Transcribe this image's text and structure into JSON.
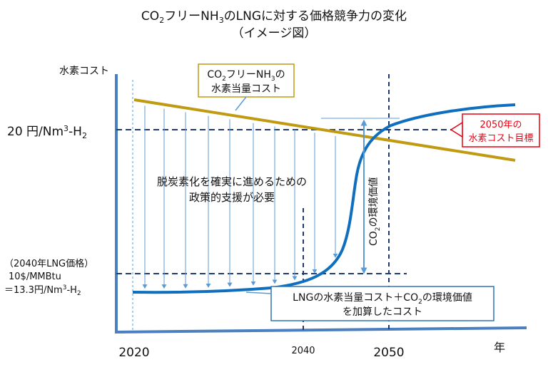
{
  "title": {
    "line1_parts": [
      "CO",
      "2",
      "フリーNH",
      "3",
      "のLNGに対する価格競争力の変化"
    ],
    "line2": "（イメージ図）"
  },
  "axes": {
    "ylabel": "水素コスト",
    "xlabel": "年",
    "x_ticks": [
      "2020",
      "2040",
      "2050"
    ],
    "y_ticks": {
      "target_parts": [
        "20 円/Nm",
        "3",
        "-H",
        "2"
      ],
      "lng_line1": "（2040年LNG価格）",
      "lng_line2": "10$/MMBtu",
      "lng_line3_parts": [
        "＝13.3円/Nm",
        "3",
        "-H",
        "2"
      ]
    }
  },
  "annotations": {
    "nh3_box_line1_parts": [
      "CO",
      "2",
      "フリーNH",
      "3",
      "の"
    ],
    "nh3_box_line2": "水素当量コスト",
    "target_box_line1": "2050年の",
    "target_box_line2": "水素コスト目標",
    "policy_line1": "脱炭素化を確実に進めるための",
    "policy_line2": "政策的支援が必要",
    "env_value_parts": [
      "CO",
      "2",
      "の環境価値"
    ],
    "lng_box_line1_parts": [
      "LNGの水素当量コスト＋CO",
      "2",
      "の環境価値"
    ],
    "lng_box_line2": "を加算したコスト"
  },
  "colors": {
    "axis": "#4a7fc0",
    "nh3_line": "#c09a10",
    "lng_curve": "#0f6fbe",
    "dashed": "#1f3a70",
    "target_text": "#e60012",
    "arrows": "#5b9bd5",
    "box_border_nh3": "#c09a10",
    "box_border_blue": "#2e75b6"
  },
  "chart_data": {
    "type": "line",
    "xlabel": "年",
    "ylabel": "水素コスト",
    "x_ticks": [
      2020,
      2040,
      2050
    ],
    "reference_lines": [
      {
        "axis": "y",
        "label": "20 円/Nm3-H2"
      },
      {
        "axis": "y",
        "label": "（2040年LNG価格）10$/MMBtu ＝13.3円/Nm3-H2"
      },
      {
        "axis": "x",
        "value": 2040
      },
      {
        "axis": "x",
        "value": 2050
      }
    ],
    "series": [
      {
        "name": "CO2フリーNH3の水素当量コスト",
        "shape": "linearly decreasing"
      },
      {
        "name": "LNGの水素当量コスト＋CO2の環境価値を加算したコスト",
        "shape": "S-curve rising"
      }
    ]
  }
}
